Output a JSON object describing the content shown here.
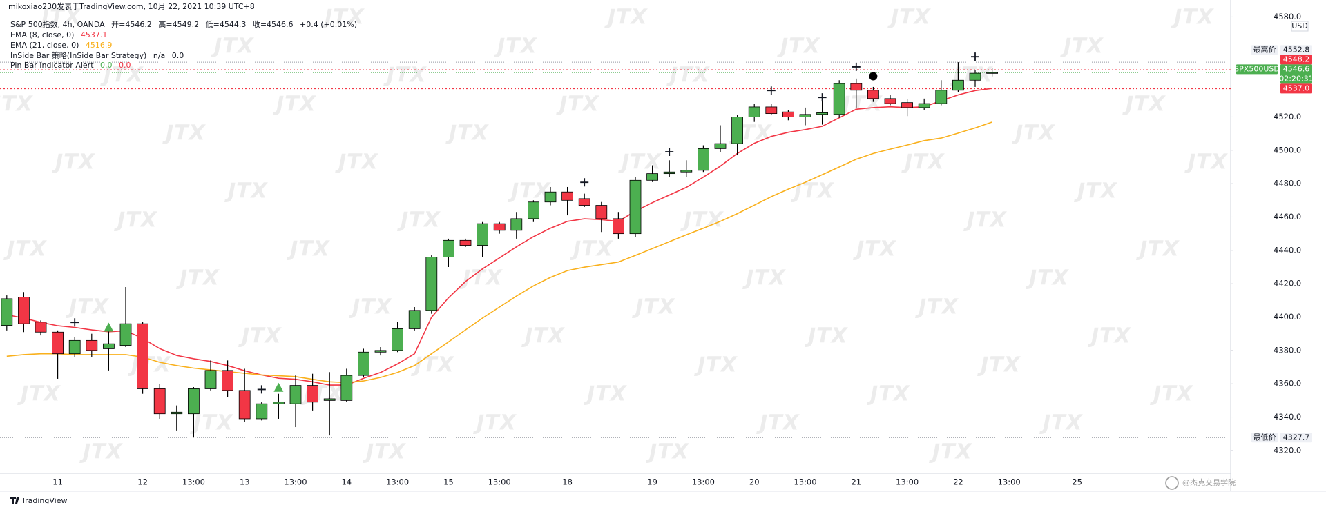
{
  "chart_data": {
    "type": "candlestick",
    "attribution": "mikoxiao230发表于TradingView.com, 10月 22, 2021 10:39 UTC+8",
    "title": "S&P 500指数, 4h, OANDA",
    "ohlc_labels": [
      "开=",
      "高=",
      "低=",
      "收="
    ],
    "change": "+0.4 (+0.01%)",
    "up_color": "#4caf50",
    "down_color": "#f23645",
    "categories": [
      null,
      null,
      null,
      "11",
      null,
      null,
      null,
      null,
      "12",
      null,
      null,
      "13:00",
      null,
      null,
      "13",
      null,
      null,
      "13:00",
      null,
      null,
      "14",
      null,
      null,
      "13:00",
      null,
      null,
      "15",
      null,
      null,
      "13:00",
      null,
      null,
      null,
      "18",
      null,
      null,
      null,
      null,
      "19",
      null,
      null,
      "13:00",
      null,
      null,
      "20",
      null,
      null,
      "13:00",
      null,
      null,
      "21",
      null,
      null,
      "13:00",
      null,
      null,
      "22",
      null,
      null,
      "13:00",
      null,
      null,
      null,
      "25"
    ],
    "open": [
      4395,
      4412,
      4397,
      4391,
      4378,
      4386,
      4381,
      4383,
      4396,
      4357,
      4342,
      4342,
      4357,
      4368,
      4356,
      4339,
      4348,
      4348,
      4359,
      4350,
      4350,
      4365,
      4379,
      4380,
      4393,
      4404,
      4436,
      4446,
      4443,
      4456,
      4452,
      4459,
      4469,
      4475,
      4471,
      4467,
      4459,
      4450,
      4482,
      4486,
      4487,
      4488,
      4501,
      4504,
      4520,
      4526,
      4523,
      4520,
      4521.5,
      4521.5,
      4540,
      4536,
      4531,
      4528.6,
      4525.6,
      4528,
      4536,
      4542,
      4546.2,
      null,
      null,
      null,
      null,
      null
    ],
    "high": [
      4413,
      4415,
      4398,
      4392,
      4388,
      4390,
      4393,
      4418,
      4397,
      4360,
      4347,
      4358,
      4374,
      4374,
      4369,
      4349,
      4354,
      4365,
      4366,
      4367,
      4369,
      4381,
      4382,
      4397,
      4406,
      4437,
      4447,
      4447,
      4457,
      4457,
      4463,
      4470,
      4478,
      4478,
      4474,
      4469,
      4463,
      4484,
      4491,
      4494,
      4494,
      4503,
      4515,
      4521,
      4528,
      4528,
      4524,
      4525.6,
      4529.7,
      4542,
      4543,
      4538,
      4533,
      4530.7,
      4531,
      4542,
      4552.8,
      4548,
      4549.2,
      null,
      null,
      null,
      null,
      null
    ],
    "low": [
      4392,
      4391,
      4389,
      4363,
      4376,
      4376,
      4368,
      4382,
      4354,
      4339,
      4332,
      4327.7,
      4356,
      4352,
      4337,
      4338,
      4339,
      4334,
      4344,
      4329,
      4349,
      4364,
      4377,
      4379,
      4392,
      4402,
      4430,
      4442,
      4436,
      4450,
      4447,
      4457,
      4467,
      4461,
      4466,
      4451,
      4447,
      4448,
      4481,
      4484,
      4484,
      4487,
      4499,
      4497,
      4517,
      4521,
      4518,
      4515,
      4515.4,
      4519.5,
      4525.6,
      4529,
      4527,
      4520.5,
      4524,
      4527,
      4535,
      4538,
      4544.3,
      null,
      null,
      null,
      null,
      null
    ],
    "close": [
      4411,
      4396,
      4391,
      4378,
      4386,
      4380,
      4384,
      4396,
      4357,
      4342,
      4343,
      4357,
      4368,
      4356,
      4339,
      4348,
      4349,
      4359,
      4349,
      4351,
      4365,
      4379,
      4380,
      4393,
      4404,
      4436,
      4446,
      4443,
      4456,
      4452,
      4459,
      4469,
      4475,
      4470,
      4467,
      4459,
      4450,
      4482,
      4486,
      4487,
      4488,
      4501,
      4504,
      4520,
      4526,
      4522,
      4520,
      4521.5,
      4522.5,
      4540,
      4536,
      4531,
      4528,
      4525.6,
      4528,
      4536,
      4542,
      4546.2,
      4546.6,
      null,
      null,
      null,
      null,
      null
    ],
    "series": [
      {
        "name": "EMA (8, close, 0)",
        "color": "#f23645",
        "values": [
          4401.4,
          4399.4,
          4396.8,
          4394.8,
          4393.8,
          4392.3,
          4391.2,
          4391.8,
          4387.2,
          4381.1,
          4377.0,
          4375.0,
          4373.4,
          4370.9,
          4367.8,
          4365.3,
          4363.3,
          4362.7,
          4361.2,
          4359.2,
          4359.2,
          4363.3,
          4366.8,
          4371.9,
          4378.0,
          4399.9,
          4411.6,
          4421.3,
          4428.9,
          4435.5,
          4442.1,
          4448.2,
          4453.3,
          4457.4,
          4458.9,
          4458.4,
          4457.4,
          4463.5,
          4468.6,
          4473.2,
          4477.8,
          4483.9,
          4490.5,
          4498.1,
          4504.2,
          4508.3,
          4510.8,
          4512.4,
          4514.4,
          4519.5,
          4524.6,
          4525.6,
          4526.1,
          4525.6,
          4526.1,
          4529.7,
          4533.2,
          4535.8,
          4537.1,
          null,
          null,
          null,
          null,
          null
        ]
      },
      {
        "name": "EMA (21, close, 0)",
        "color": "#f9b01c",
        "values": [
          4376.5,
          4377.5,
          4378.0,
          4378.0,
          4377.5,
          4377.5,
          4377.5,
          4377.5,
          4376.0,
          4372.9,
          4370.9,
          4369.4,
          4368.3,
          4367.3,
          4366.3,
          4365.3,
          4364.8,
          4364.3,
          4362.7,
          4361.2,
          4360.7,
          4361.7,
          4363.8,
          4366.8,
          4370.9,
          4378.0,
          4385.1,
          4392.3,
          4399.4,
          4406.0,
          4412.6,
          4418.7,
          4423.8,
          4427.9,
          4429.9,
          4431.5,
          4433.0,
          4437.0,
          4441.1,
          4445.2,
          4449.3,
          4453.3,
          4457.4,
          4462.0,
          4467.1,
          4472.2,
          4476.7,
          4480.8,
          4485.4,
          4490.0,
          4494.6,
          4498.1,
          4500.7,
          4503.2,
          4505.8,
          4507.3,
          4510.3,
          4513.4,
          4516.9,
          null,
          null,
          null,
          null,
          null
        ]
      }
    ],
    "markers": [
      {
        "name": "InSide Bar 策略(InSide Bar Strategy)",
        "shape": "triangle",
        "color": "#4caf50",
        "readout": [
          "n/a",
          "0.0"
        ],
        "readout_colors": [
          "#131722",
          "#131722"
        ],
        "values": [
          null,
          null,
          null,
          null,
          null,
          null,
          4393.8,
          null,
          null,
          null,
          null,
          null,
          null,
          null,
          null,
          null,
          4357.7,
          null,
          null,
          null,
          null,
          null,
          null,
          null,
          null,
          null,
          null,
          null,
          null,
          null,
          null,
          null,
          null,
          null,
          null,
          null,
          null,
          null,
          null,
          null,
          null,
          null,
          null,
          null,
          null,
          null,
          null,
          null,
          null,
          null,
          null,
          null,
          null,
          null,
          null,
          null,
          null,
          null,
          null,
          null,
          null,
          null,
          null,
          null
        ]
      },
      {
        "name": "Pin Bar Indicator Alert",
        "shape": "cross",
        "color": "#131722",
        "readout": [
          "0.0",
          "0.0"
        ],
        "readout_colors": [
          "#4caf50",
          "#f23645"
        ],
        "values": [
          null,
          null,
          null,
          null,
          4396.8,
          null,
          null,
          null,
          null,
          null,
          null,
          null,
          null,
          null,
          null,
          4356.6,
          null,
          null,
          null,
          null,
          null,
          null,
          null,
          null,
          null,
          null,
          null,
          null,
          null,
          null,
          null,
          null,
          null,
          null,
          4480.8,
          null,
          null,
          null,
          null,
          4499.1,
          null,
          null,
          null,
          null,
          null,
          4535.8,
          null,
          null,
          4531.7,
          null,
          4550.0,
          null,
          null,
          null,
          null,
          null,
          null,
          4556.1,
          null,
          null,
          null,
          null,
          null,
          null
        ]
      },
      {
        "shape": "circle",
        "color": "#000000",
        "values": [
          null,
          null,
          null,
          null,
          null,
          null,
          null,
          null,
          null,
          null,
          null,
          null,
          null,
          null,
          null,
          null,
          null,
          null,
          null,
          null,
          null,
          null,
          null,
          null,
          null,
          null,
          null,
          null,
          null,
          null,
          null,
          null,
          null,
          null,
          null,
          null,
          null,
          null,
          null,
          null,
          null,
          null,
          null,
          null,
          null,
          null,
          null,
          null,
          null,
          null,
          null,
          4544.4,
          null,
          null,
          null,
          null,
          null,
          null,
          null,
          null,
          null,
          null,
          null,
          null
        ]
      }
    ],
    "ylim": [
      4306.3,
      4590.1
    ],
    "yticks": [
      {
        "value": 4580,
        "label": "4580.0"
      },
      {
        "value": 4520,
        "label": "4520.0"
      },
      {
        "value": 4500,
        "label": "4500.0"
      },
      {
        "value": 4480,
        "label": "4480.0"
      },
      {
        "value": 4460,
        "label": "4460.0"
      },
      {
        "value": 4440,
        "label": "4440.0"
      },
      {
        "value": 4420,
        "label": "4420.0"
      },
      {
        "value": 4400,
        "label": "4400.0"
      },
      {
        "value": 4380,
        "label": "4380.0"
      },
      {
        "value": 4360,
        "label": "4360.0"
      },
      {
        "value": 4340,
        "label": "4340.0"
      },
      {
        "value": 4320,
        "label": "4320.0"
      }
    ],
    "levels": [
      4548.2,
      {
        "value": 4537,
        "label": "4537.0"
      }
    ],
    "level_color": "#f23645",
    "high_label": "最高价",
    "low_label": "最低价",
    "symbol": "SPX500USD",
    "countdown": "02:20:31",
    "currency": "USD",
    "watermark": "JTX",
    "credit": "@杰克交易学院",
    "brand": "TradingView"
  }
}
